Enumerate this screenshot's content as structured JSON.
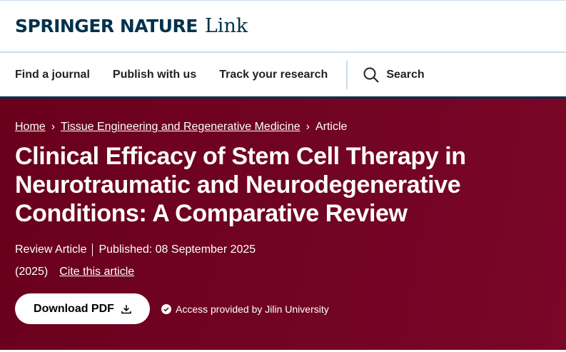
{
  "brand": {
    "name": "SPRINGER NATURE",
    "product": "Link"
  },
  "nav": {
    "items": [
      "Find a journal",
      "Publish with us",
      "Track your research"
    ],
    "search_label": "Search"
  },
  "breadcrumb": [
    "Home",
    "Tissue Engineering and Regenerative Medicine",
    "Article"
  ],
  "article": {
    "title": "Clinical Efficacy of Stem Cell Therapy in Neurotraumatic and Neurodegenerative Conditions: A Comparative Review",
    "type": "Review Article",
    "published": "Published: 08 September 2025",
    "year": "(2025)",
    "cite_label": "Cite this article",
    "download_label": "Download PDF",
    "access_text": "Access provided by Jilin University"
  },
  "colors": {
    "brand_navy": "#01324b",
    "hero_maroon": "#6a001c"
  }
}
